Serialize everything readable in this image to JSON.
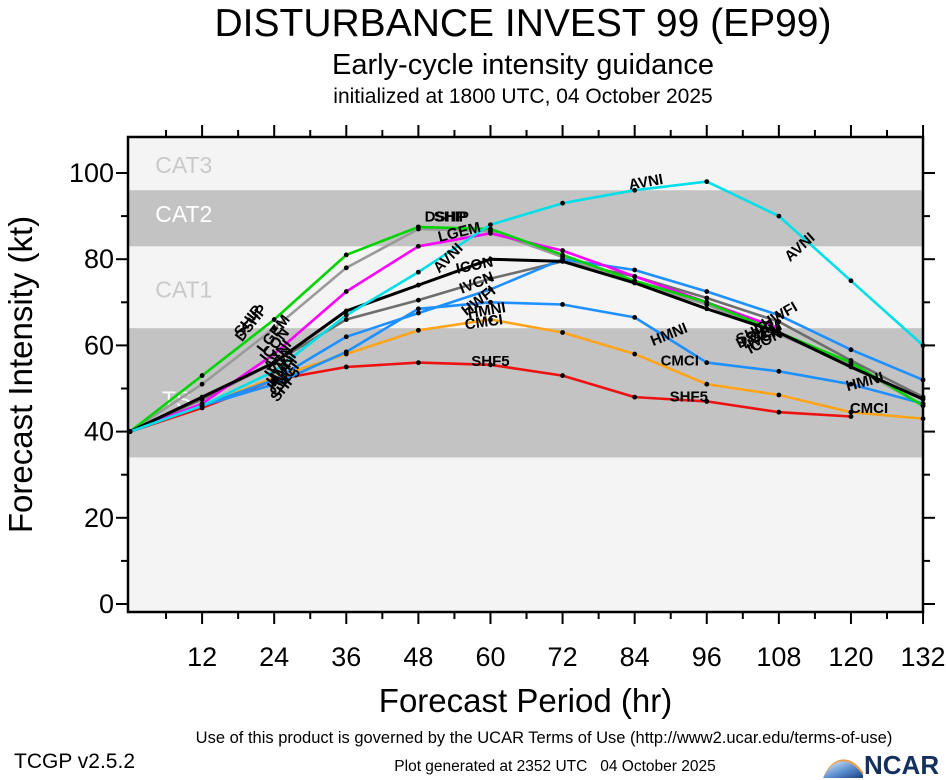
{
  "header": {
    "title": "DISTURBANCE INVEST 99 (EP99)",
    "subtitle": "Early-cycle intensity guidance",
    "init_line": "initialized at 1800 UTC, 04 October 2025"
  },
  "axes": {
    "x_label": "Forecast Period (hr)",
    "y_label": "Forecast Intensity (kt)",
    "x_ticks": [
      12,
      24,
      36,
      48,
      60,
      72,
      84,
      96,
      108,
      120,
      132
    ],
    "x_minor": [
      6,
      18,
      30,
      42,
      54,
      66,
      78,
      90,
      102,
      114,
      126
    ],
    "y_ticks": [
      0,
      20,
      40,
      60,
      80,
      100
    ],
    "y_minor": [
      10,
      30,
      50,
      70,
      90
    ],
    "x_range": [
      0,
      132
    ],
    "y_range": [
      0,
      108.4
    ]
  },
  "band_colors": {
    "dark": "#c3c3c3",
    "light": "#f4f4f4"
  },
  "bands": [
    {
      "label": "TS",
      "from": 34,
      "to": 64,
      "shade": "dark",
      "label_color": "#ffffff",
      "label_hr": 5.3,
      "label_kt": 47.5
    },
    {
      "label": "CAT1",
      "from": 64,
      "to": 83,
      "shade": "light",
      "label_color": "#c9c9c9",
      "label_hr": 4.2,
      "label_kt": 73
    },
    {
      "label": "CAT2",
      "from": 83,
      "to": 96,
      "shade": "dark",
      "label_color": "#ffffff",
      "label_hr": 4.2,
      "label_kt": 90.5
    },
    {
      "label": "CAT3",
      "from": 96,
      "to": 108.4,
      "shade": "light",
      "label_color": "#c9c9c9",
      "label_hr": 4.2,
      "label_kt": 101.8
    }
  ],
  "chart_data": {
    "type": "line",
    "title": "DISTURBANCE INVEST 99 (EP99) early-cycle intensity guidance",
    "xlabel": "Forecast Period (hr)",
    "ylabel": "Forecast Intensity (kt)",
    "xlim": [
      0,
      132
    ],
    "ylim": [
      0,
      108.4
    ],
    "grid": false,
    "x": [
      0,
      12,
      24,
      36,
      48,
      60,
      72,
      84,
      96,
      108,
      120,
      132
    ],
    "series": [
      {
        "name": "IVCN",
        "color": "#6e6e6e",
        "values": [
          40,
          47.5,
          56,
          66,
          70.5,
          75.5,
          79.5,
          76,
          71,
          65.5,
          56.5,
          48
        ]
      },
      {
        "name": "DSHP",
        "color": "#9a9a9a",
        "values": [
          40,
          51,
          64,
          78,
          87,
          86.5,
          80.5,
          74.5,
          69.5,
          62.5,
          55.5,
          46
        ]
      },
      {
        "name": "CMCI",
        "color": "#ffa41b",
        "values": [
          40,
          46,
          52.5,
          58,
          63.5,
          66,
          63,
          58,
          51,
          48.5,
          44.5,
          43
        ]
      },
      {
        "name": "SHF5",
        "color": "#ee1111",
        "values": [
          40,
          45.5,
          52,
          55,
          56,
          55.5,
          53,
          48,
          47,
          44.5,
          43.5,
          null
        ]
      },
      {
        "name": "HMNI",
        "color": "#1e90ff",
        "values": [
          40,
          46,
          51,
          58.5,
          68.5,
          70,
          69.5,
          66.5,
          56,
          54,
          51,
          46.5
        ]
      },
      {
        "name": "HWFI",
        "color": "#1e90ff",
        "values": [
          40,
          46,
          52,
          62,
          67.5,
          73,
          80,
          77.5,
          72.5,
          67,
          59,
          52
        ]
      },
      {
        "name": "LGEM",
        "color": "#ff00ff",
        "values": [
          40,
          46.5,
          58,
          72.5,
          83,
          86,
          82,
          76,
          70,
          64,
          null,
          null
        ]
      },
      {
        "name": "SHIP",
        "color": "#00d400",
        "values": [
          40,
          53,
          66,
          81,
          87.5,
          87,
          81,
          75,
          70,
          63,
          56,
          46
        ]
      },
      {
        "name": "ICON",
        "color": "#000000",
        "values": [
          40,
          48,
          56,
          68,
          74,
          80,
          79.5,
          74.5,
          68.5,
          63,
          55,
          47.5
        ]
      },
      {
        "name": "AVNI",
        "color": "#00dfe8",
        "values": [
          40,
          46,
          54,
          67,
          77,
          88,
          93,
          96,
          98,
          90,
          75,
          60
        ]
      }
    ]
  },
  "line_labels": [
    {
      "text": "SHIP",
      "hr": 20.3,
      "kt": 65,
      "angle": -52
    },
    {
      "text": "DSHP",
      "hr": 20.8,
      "kt": 64.5,
      "angle": -52
    },
    {
      "text": "LGEM",
      "hr": 24.5,
      "kt": 62,
      "angle": -52
    },
    {
      "text": "ICON",
      "hr": 24.7,
      "kt": 59.5,
      "angle": -52
    },
    {
      "text": "AVNI",
      "hr": 25.2,
      "kt": 57,
      "angle": -52
    },
    {
      "text": "IVCN",
      "hr": 25.4,
      "kt": 55.5,
      "angle": -52
    },
    {
      "text": "HMNI",
      "hr": 25.8,
      "kt": 54,
      "angle": -52
    },
    {
      "text": "HWFI",
      "hr": 26.0,
      "kt": 52.8,
      "angle": -52
    },
    {
      "text": "CMCI",
      "hr": 26.3,
      "kt": 51.5,
      "angle": -52
    },
    {
      "text": "SHF5",
      "hr": 26.5,
      "kt": 50.2,
      "angle": -52
    },
    {
      "text": "SHIP",
      "hr": 53.5,
      "kt": 88.7,
      "angle": 0
    },
    {
      "text": "DSHP",
      "hr": 52.5,
      "kt": 88.7,
      "angle": 0
    },
    {
      "text": "LGEM",
      "hr": 55,
      "kt": 85.2,
      "angle": -14
    },
    {
      "text": "AVNI",
      "hr": 53.5,
      "kt": 79.5,
      "angle": -45
    },
    {
      "text": "ICON",
      "hr": 57.5,
      "kt": 77.5,
      "angle": -12
    },
    {
      "text": "IVCN",
      "hr": 58,
      "kt": 73.5,
      "angle": -22
    },
    {
      "text": "HWFI",
      "hr": 58.5,
      "kt": 69.5,
      "angle": -38
    },
    {
      "text": "HMNI",
      "hr": 59.5,
      "kt": 67,
      "angle": -10
    },
    {
      "text": "CMCI",
      "hr": 59,
      "kt": 64.3,
      "angle": -8
    },
    {
      "text": "SHF5",
      "hr": 60,
      "kt": 55.2,
      "angle": 0
    },
    {
      "text": "AVNI",
      "hr": 86,
      "kt": 96.8,
      "angle": -10
    },
    {
      "text": "AVNI",
      "hr": 112,
      "kt": 82,
      "angle": -42
    },
    {
      "text": "SHIP",
      "hr": 104,
      "kt": 62,
      "angle": -28
    },
    {
      "text": "DSHP",
      "hr": 104.5,
      "kt": 61.5,
      "angle": -28
    },
    {
      "text": "LGEM",
      "hr": 105.5,
      "kt": 61.5,
      "angle": -28
    },
    {
      "text": "IVCN",
      "hr": 106,
      "kt": 61,
      "angle": -28
    },
    {
      "text": "ICON",
      "hr": 106,
      "kt": 60,
      "angle": -28
    },
    {
      "text": "HWFI",
      "hr": 108.5,
      "kt": 66,
      "angle": -30
    },
    {
      "text": "HMNI",
      "hr": 90,
      "kt": 61.5,
      "angle": -22
    },
    {
      "text": "HMNI",
      "hr": 122.5,
      "kt": 50.5,
      "angle": -15
    },
    {
      "text": "CMCI",
      "hr": 91.5,
      "kt": 55.3,
      "angle": 0
    },
    {
      "text": "CMCI",
      "hr": 123,
      "kt": 44.3,
      "angle": 0
    },
    {
      "text": "SHF5",
      "hr": 93,
      "kt": 47,
      "angle": 0
    }
  ],
  "footer": {
    "disclaimer": "Use of this product is governed by the UCAR Terms of Use (http://www2.ucar.edu/terms-of-use)",
    "version": "TCGP v2.5.2",
    "generated": "Plot generated at 2352 UTC   04 October 2025",
    "logo_text": "NCAR"
  }
}
